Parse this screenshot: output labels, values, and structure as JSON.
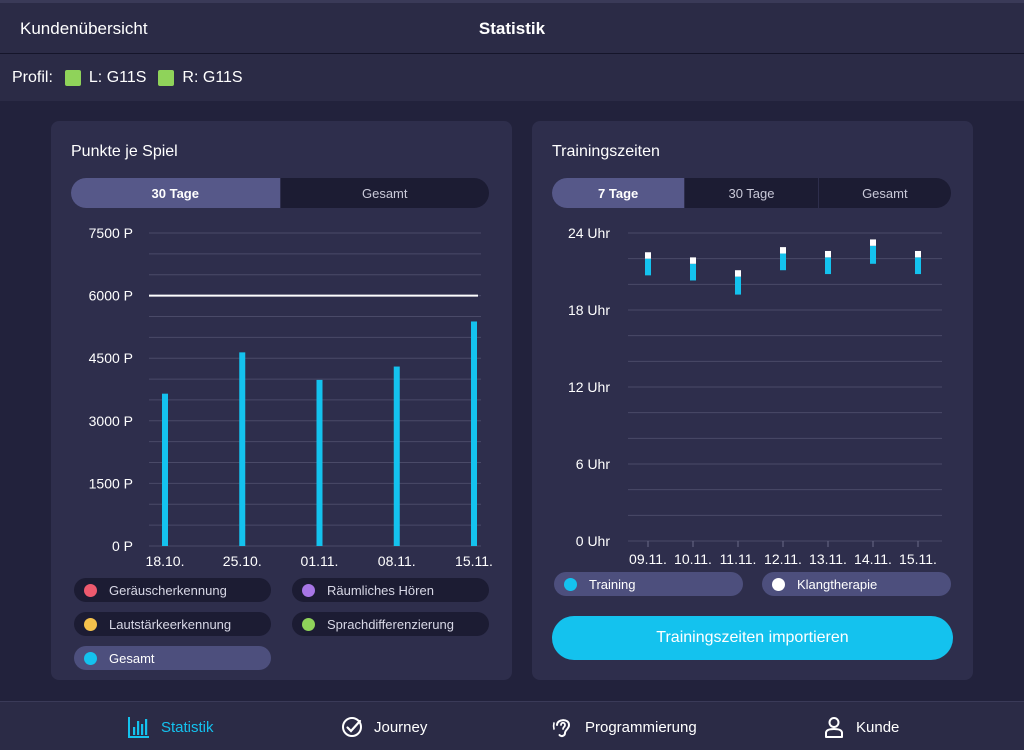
{
  "topbar": {
    "back_label": "Kundenübersicht",
    "title": "Statistik"
  },
  "profile": {
    "label": "Profil:",
    "left": {
      "text": "L: G11S",
      "color": "#8fd35a"
    },
    "right": {
      "text": "R: G11S",
      "color": "#8fd35a"
    }
  },
  "points_card": {
    "title": "Punkte je Spiel",
    "tabs": [
      {
        "label": "30 Tage",
        "active": true
      },
      {
        "label": "Gesamt",
        "active": false
      }
    ],
    "legend": [
      {
        "label": "Geräuscherkennung",
        "color": "#ee5a6e",
        "active": false
      },
      {
        "label": "Räumliches Hören",
        "color": "#a776e6",
        "active": false
      },
      {
        "label": "Lautstärkeerkennung",
        "color": "#f5c24c",
        "active": false
      },
      {
        "label": "Sprachdifferenzierung",
        "color": "#8fd35a",
        "active": false
      },
      {
        "label": "Gesamt",
        "color": "#14c2ee",
        "active": true
      }
    ]
  },
  "training_card": {
    "title": "Trainingszeiten",
    "tabs": [
      {
        "label": "7 Tage",
        "active": true
      },
      {
        "label": "30 Tage",
        "active": false
      },
      {
        "label": "Gesamt",
        "active": false
      }
    ],
    "legend": [
      {
        "label": "Training",
        "color": "#14c2ee",
        "active": true
      },
      {
        "label": "Klangtherapie",
        "color": "#ffffff",
        "active": true
      }
    ],
    "import_label": "Trainingszeiten importieren"
  },
  "bottom_nav": [
    {
      "label": "Statistik",
      "icon": "bar-chart-icon",
      "active": true
    },
    {
      "label": "Journey",
      "icon": "check-circle-icon",
      "active": false
    },
    {
      "label": "Programmierung",
      "icon": "ear-icon",
      "active": false
    },
    {
      "label": "Kunde",
      "icon": "person-icon",
      "active": false
    }
  ],
  "chart_data": [
    {
      "type": "bar",
      "title": "Punkte je Spiel",
      "categories": [
        "18.10.",
        "25.10.",
        "01.11.",
        "08.11.",
        "15.11."
      ],
      "series": [
        {
          "name": "Gesamt",
          "values": [
            3650,
            4640,
            3980,
            4300,
            5380
          ],
          "color": "#14c2ee"
        }
      ],
      "y_ticks": [
        "7500 P",
        "6000 P",
        "4500 P",
        "3000 P",
        "1500 P",
        "0 P"
      ],
      "ylim": [
        0,
        7500
      ],
      "target_line": 6000,
      "grid": true
    },
    {
      "type": "bar",
      "title": "Trainingszeiten",
      "categories": [
        "09.11.",
        "10.11.",
        "11.11.",
        "12.11.",
        "13.11.",
        "14.11.",
        "15.11."
      ],
      "series": [
        {
          "name": "Training",
          "color": "#14c2ee",
          "ranges": [
            [
              20.7,
              22.0
            ],
            [
              20.3,
              21.6
            ],
            [
              19.2,
              20.6
            ],
            [
              21.1,
              22.4
            ],
            [
              20.8,
              22.1
            ],
            [
              21.6,
              23.0
            ],
            [
              20.8,
              22.1
            ]
          ]
        },
        {
          "name": "Klangtherapie",
          "color": "#ffffff",
          "ranges": [
            [
              22.0,
              22.5
            ],
            [
              21.6,
              22.1
            ],
            [
              20.6,
              21.1
            ],
            [
              22.4,
              22.9
            ],
            [
              22.1,
              22.6
            ],
            [
              23.0,
              23.5
            ],
            [
              22.1,
              22.6
            ]
          ]
        }
      ],
      "y_ticks": [
        "24 Uhr",
        "18 Uhr",
        "12 Uhr",
        "6 Uhr",
        "0 Uhr"
      ],
      "ylim": [
        0,
        24
      ],
      "grid": true
    }
  ]
}
